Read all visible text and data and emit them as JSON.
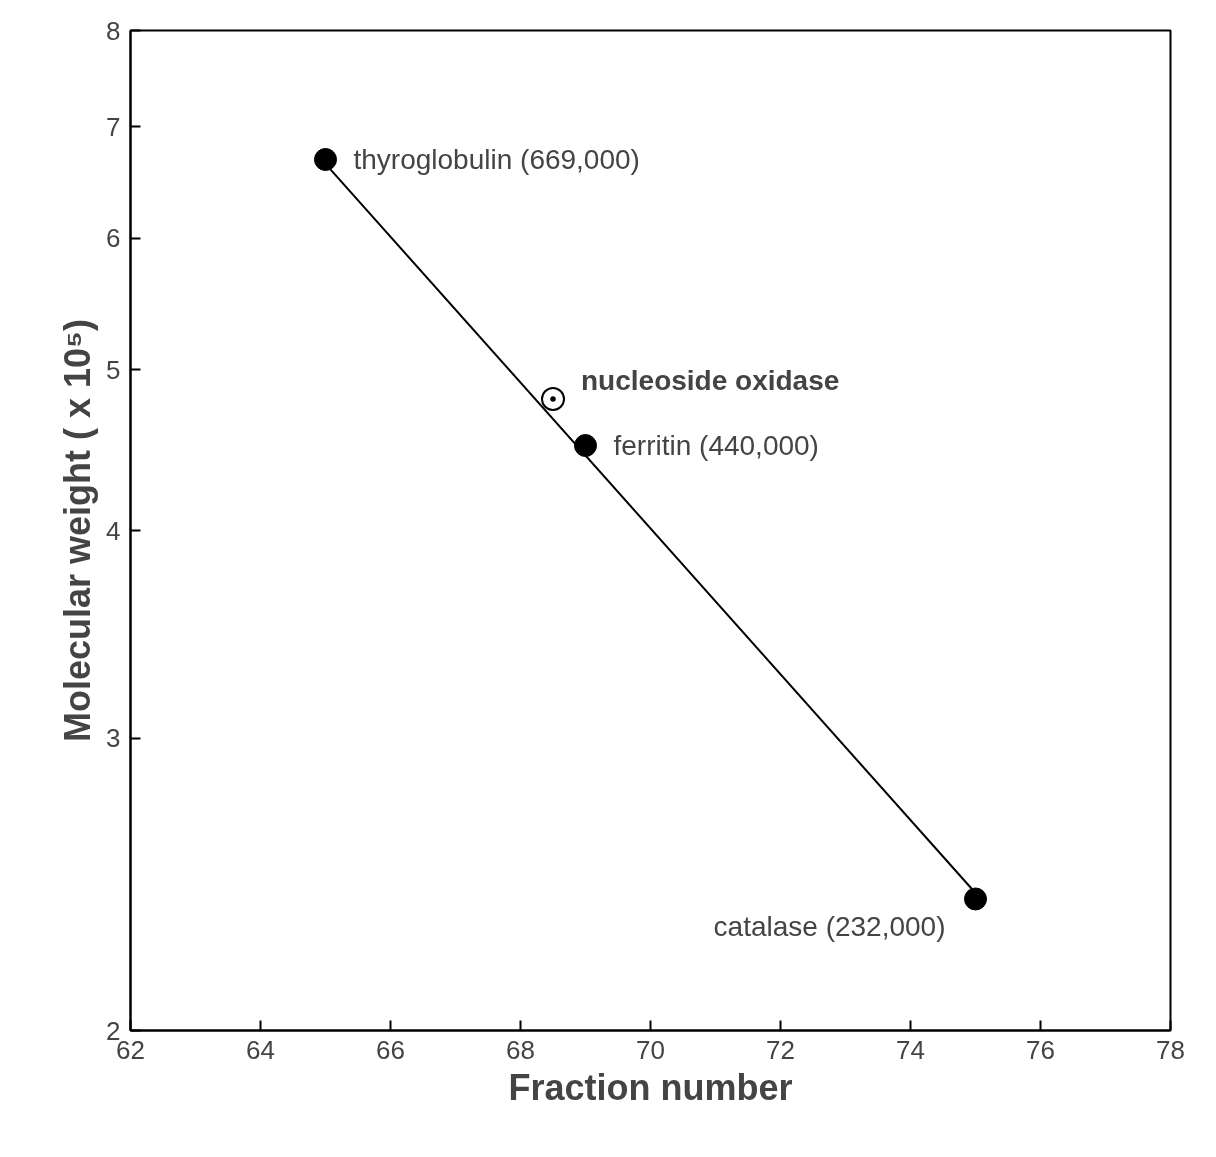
{
  "chart_data": {
    "type": "scatter",
    "xlabel": "Fraction number",
    "ylabel": "Molecular weight ( x 10⁵)",
    "log": "y",
    "grid": false,
    "xlim": [
      62,
      78
    ],
    "xticks": [
      62,
      64,
      66,
      68,
      70,
      72,
      74,
      76,
      78
    ],
    "ylim": [
      2,
      8
    ],
    "yticks": [
      2,
      3,
      4,
      5,
      6,
      7,
      8
    ],
    "marker": "circle",
    "series": [
      {
        "type": "line",
        "marker": "none",
        "color": "#000000",
        "x": [
          65,
          75
        ],
        "values": [
          6.65,
          2.42
        ]
      },
      {
        "color": "#000000",
        "x": [
          65,
          69,
          75
        ],
        "values": [
          6.69,
          4.5,
          2.4
        ]
      },
      {
        "color": "#000000",
        "marker": "circle_dot",
        "x": [
          68.5
        ],
        "values": [
          4.8
        ]
      }
    ],
    "annotations": [
      {
        "text": "thyroglobulin (669,000)",
        "x": 65,
        "y": 6.69
      },
      {
        "text": "nucleoside oxidase",
        "x": 68.5,
        "y": 4.8
      },
      {
        "text": "ferritin (440,000)",
        "x": 69,
        "y": 4.5
      },
      {
        "text": "catalase (232,000)",
        "x": 75,
        "y": 2.4
      }
    ]
  }
}
